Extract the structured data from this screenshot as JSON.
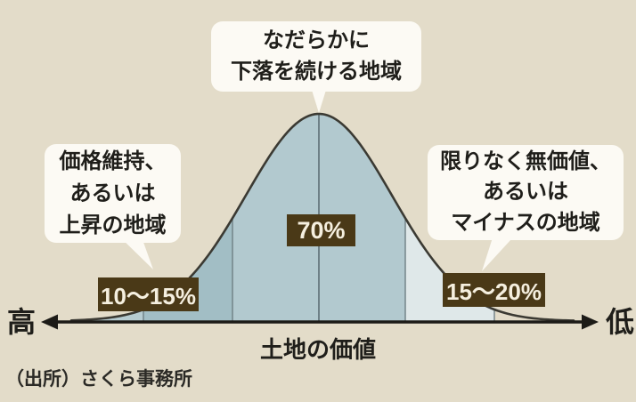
{
  "colors": {
    "bg": "#e3dcc9",
    "callout_bg": "#fcfaf4",
    "badge_bg": "#4a3917",
    "badge_text": "#f5efdf",
    "text": "#1f1e1a",
    "source_text": "#2b2a26",
    "curve_stroke": "#3b3a33",
    "axis": "#1c1b17",
    "divider": "#6e7f84",
    "centerline": "#5d6f75",
    "band1": "#b6ccd1",
    "band2": "#a2bec5",
    "band3": "#b2c9cf",
    "band4": "#dfe8e9",
    "band5": "#e3dcc9"
  },
  "labels": {
    "callout_top": "なだらかに\n下落を続ける地域",
    "callout_left": "価格維持、\nあるいは\n上昇の地域",
    "callout_right": "限りなく無価値、\nあるいは\nマイナスの地域",
    "pct_left": "10〜15%",
    "pct_center": "70%",
    "pct_right": "15〜20%",
    "axis_high": "高",
    "axis_low": "低",
    "axis_title": "土地の価値",
    "source": "（出所）さくら事務所"
  },
  "chart_data": {
    "type": "area",
    "shape": "bell-curve-distribution",
    "xlabel": "土地の価値",
    "x_axis_ends": {
      "left": "高",
      "right": "低"
    },
    "grid": false,
    "regions": [
      {
        "position": "left-tail",
        "label": "価格維持、あるいは上昇の地域",
        "share": "10〜15%"
      },
      {
        "position": "center",
        "label": "なだらかに下落を続ける地域",
        "share": "70%"
      },
      {
        "position": "right-tail",
        "label": "限りなく無価値、あるいはマイナスの地域",
        "share": "15〜20%"
      }
    ],
    "source": "（出所）さくら事務所"
  }
}
